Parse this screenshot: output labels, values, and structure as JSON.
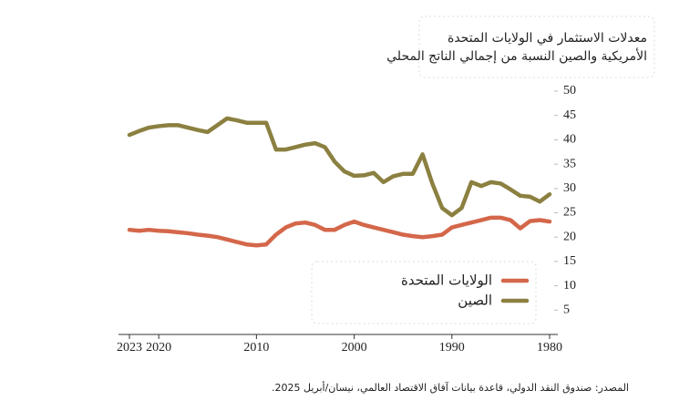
{
  "chart_data": {
    "type": "line",
    "title_lines": [
      "معدلات الاستثمار في الولايات المتحدة",
      "الأمريكية والصين النسبة من إجمالي الناتج المحلي"
    ],
    "source": "المصدر: صندوق النقد الدولي، قاعدة بيانات آفاق الاقتصاد العالمي، نيسان/أبريل 2025.",
    "x": [
      1980,
      1981,
      1982,
      1983,
      1984,
      1985,
      1986,
      1987,
      1988,
      1989,
      1990,
      1991,
      1992,
      1993,
      1994,
      1995,
      1996,
      1997,
      1998,
      1999,
      2000,
      2001,
      2002,
      2003,
      2004,
      2005,
      2006,
      2007,
      2008,
      2009,
      2010,
      2011,
      2012,
      2013,
      2014,
      2015,
      2016,
      2017,
      2018,
      2019,
      2020,
      2021,
      2022,
      2023
    ],
    "series": [
      {
        "name": "الولايات المتحدة",
        "color": "#d4674a",
        "values": [
          23.2,
          23.5,
          23.3,
          21.8,
          23.5,
          24.0,
          24.0,
          23.5,
          23.0,
          22.5,
          22.0,
          20.5,
          20.2,
          20.0,
          20.2,
          20.5,
          21.0,
          21.5,
          22.0,
          22.5,
          23.2,
          22.5,
          21.5,
          21.5,
          22.5,
          23.0,
          22.8,
          22.0,
          20.5,
          18.5,
          18.3,
          18.5,
          19.0,
          19.5,
          20.0,
          20.3,
          20.5,
          20.8,
          21.0,
          21.2,
          21.3,
          21.5,
          21.3,
          21.5
        ]
      },
      {
        "name": "الصين",
        "color": "#8b8040",
        "values": [
          28.8,
          27.3,
          28.3,
          28.5,
          29.8,
          31.0,
          31.3,
          30.5,
          31.3,
          26.0,
          24.5,
          26.0,
          31.0,
          37.0,
          33.0,
          33.0,
          32.5,
          31.3,
          33.2,
          32.7,
          32.6,
          33.5,
          35.5,
          38.5,
          39.3,
          39.0,
          38.5,
          38.0,
          38.0,
          43.5,
          43.5,
          43.5,
          44.0,
          44.4,
          43.0,
          41.6,
          42.0,
          42.5,
          43.0,
          43.0,
          42.8,
          42.5,
          41.8,
          41.0
        ]
      }
    ],
    "xlim": [
      2023,
      1980
    ],
    "xticks": [
      2023,
      2020,
      2010,
      2000,
      1990,
      1980
    ],
    "ylim": [
      0,
      50
    ],
    "yticks": [
      5,
      10,
      15,
      20,
      25,
      30,
      35,
      40,
      45,
      50
    ]
  }
}
